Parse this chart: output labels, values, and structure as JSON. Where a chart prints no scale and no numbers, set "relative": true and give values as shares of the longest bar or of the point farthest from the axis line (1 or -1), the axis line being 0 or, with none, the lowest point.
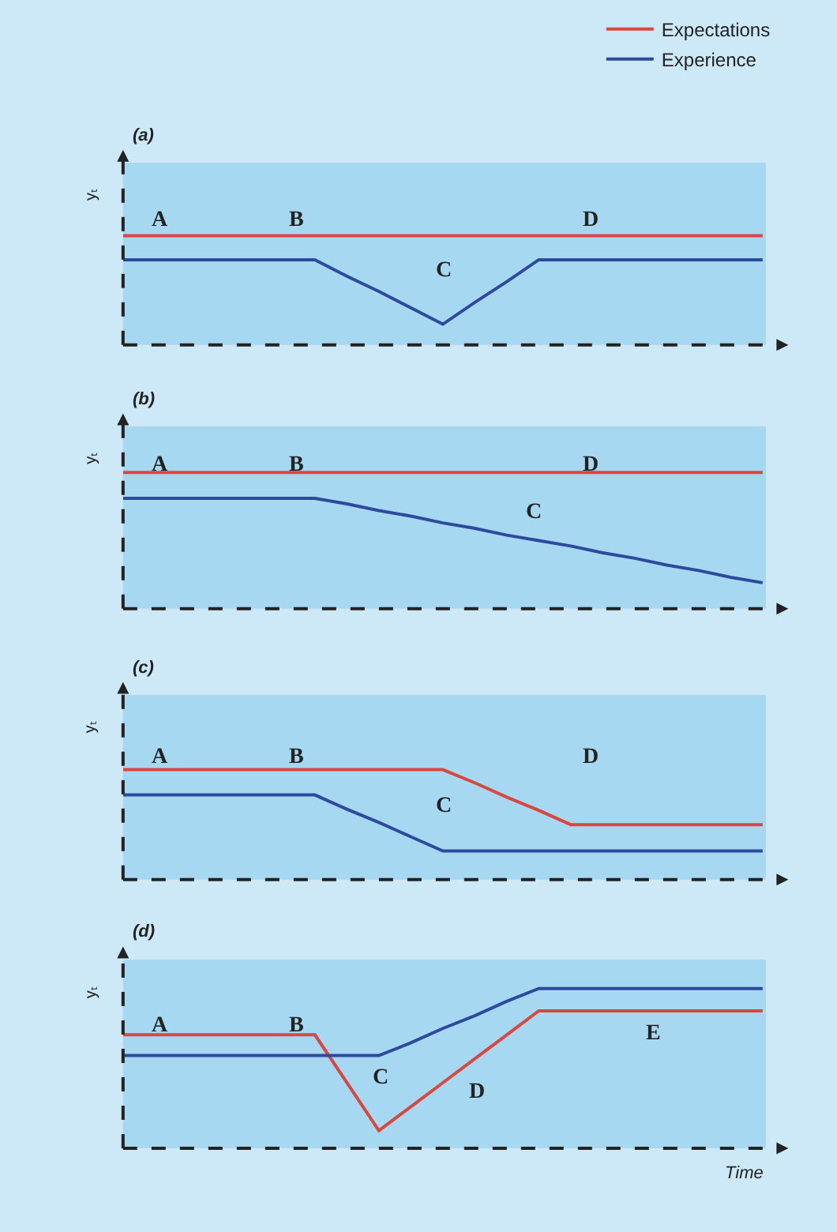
{
  "chart_data": [
    {
      "type": "line",
      "title": "(a)",
      "ylabel": "yₜ",
      "relative": true,
      "legend": "top right",
      "categories": [
        null,
        null,
        null,
        null,
        null,
        null,
        null,
        null,
        null,
        null,
        null,
        null,
        null,
        null,
        null,
        null,
        null,
        null,
        null,
        null,
        null
      ],
      "series": [
        {
          "name": "Expectations",
          "color": "#d9473f",
          "values": [
            1,
            1,
            1,
            1,
            1,
            1,
            1,
            1,
            1,
            1,
            1,
            1,
            1,
            1,
            1,
            1,
            1,
            1,
            1,
            1,
            1
          ]
        },
        {
          "name": "Experience",
          "color": "#2e4a9e",
          "values": [
            0.78,
            0.78,
            0.78,
            0.78,
            0.78,
            0.78,
            0.78,
            0.63,
            0.49,
            0.34,
            0.19,
            0.39,
            0.58,
            0.78,
            0.78,
            0.78,
            0.78,
            0.78,
            0.78,
            0.78,
            0.78
          ]
        }
      ],
      "annotations": [
        "A",
        "B",
        "C",
        "D"
      ]
    },
    {
      "type": "line",
      "title": "(b)",
      "ylabel": "yₜ",
      "relative": true,
      "categories": [
        null,
        null,
        null,
        null,
        null,
        null,
        null,
        null,
        null,
        null,
        null,
        null,
        null,
        null,
        null,
        null,
        null,
        null,
        null,
        null,
        null
      ],
      "series": [
        {
          "color": "#d9473f",
          "values": [
            1,
            1,
            1,
            1,
            1,
            1,
            1,
            1,
            1,
            1,
            1,
            1,
            1,
            1,
            1,
            1,
            1,
            1,
            1,
            1,
            1
          ]
        },
        {
          "color": "#2e4a9e",
          "values": [
            0.81,
            0.81,
            0.81,
            0.81,
            0.81,
            0.81,
            0.81,
            0.77,
            0.72,
            0.68,
            0.63,
            0.59,
            0.54,
            0.5,
            0.46,
            0.41,
            0.37,
            0.32,
            0.28,
            0.23,
            0.19
          ]
        }
      ],
      "annotations": [
        "A",
        "B",
        "C",
        "D"
      ]
    },
    {
      "type": "line",
      "title": "(c)",
      "ylabel": "yₜ",
      "relative": true,
      "categories": [
        null,
        null,
        null,
        null,
        null,
        null,
        null,
        null,
        null,
        null,
        null,
        null,
        null,
        null,
        null,
        null,
        null,
        null,
        null,
        null,
        null
      ],
      "series": [
        {
          "color": "#d9473f",
          "values": [
            1,
            1,
            1,
            1,
            1,
            1,
            1,
            1,
            1,
            1,
            1,
            0.88,
            0.75,
            0.63,
            0.5,
            0.5,
            0.5,
            0.5,
            0.5,
            0.5,
            0.5
          ]
        },
        {
          "color": "#2e4a9e",
          "values": [
            0.77,
            0.77,
            0.77,
            0.77,
            0.77,
            0.77,
            0.77,
            0.64,
            0.52,
            0.39,
            0.26,
            0.26,
            0.26,
            0.26,
            0.26,
            0.26,
            0.26,
            0.26,
            0.26,
            0.26,
            0.26
          ]
        }
      ],
      "annotations": [
        "A",
        "B",
        "C",
        "D"
      ]
    },
    {
      "type": "line",
      "title": "(d)",
      "ylabel": "yₜ",
      "xlabel": "Time",
      "relative": true,
      "categories": [
        null,
        null,
        null,
        null,
        null,
        null,
        null,
        null,
        null,
        null,
        null,
        null,
        null,
        null,
        null,
        null,
        null,
        null,
        null,
        null,
        null
      ],
      "series": [
        {
          "color": "#d9473f",
          "values": [
            0.71,
            0.71,
            0.71,
            0.71,
            0.71,
            0.71,
            0.71,
            0.41,
            0.11,
            0.26,
            0.41,
            0.56,
            0.71,
            0.86,
            0.86,
            0.86,
            0.86,
            0.86,
            0.86,
            0.86,
            0.86
          ]
        },
        {
          "color": "#2e4a9e",
          "values": [
            0.58,
            0.58,
            0.58,
            0.58,
            0.58,
            0.58,
            0.58,
            0.58,
            0.58,
            0.66,
            0.75,
            0.83,
            0.92,
            1,
            1,
            1,
            1,
            1,
            1,
            1,
            1
          ]
        }
      ],
      "annotations": [
        "A",
        "B",
        "C",
        "D",
        "E"
      ]
    }
  ]
}
